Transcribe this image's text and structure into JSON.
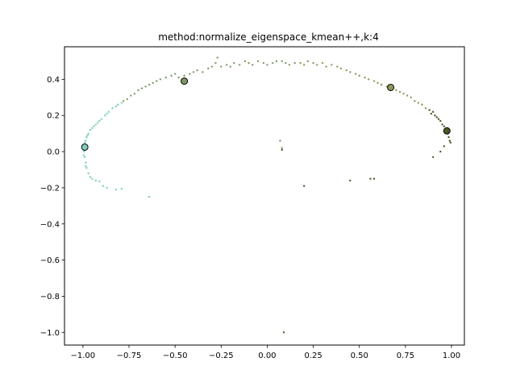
{
  "chart_data": {
    "type": "scatter",
    "title": "method:normalize_eigenspace_kmean++,k:4",
    "xlim": [
      -1.1,
      1.07
    ],
    "ylim": [
      -1.07,
      0.58
    ],
    "xticks": [
      -1.0,
      -0.75,
      -0.5,
      -0.25,
      0.0,
      0.25,
      0.5,
      0.75,
      1.0
    ],
    "xtick_labels": [
      "−1.00",
      "−0.75",
      "−0.50",
      "−0.25",
      "0.00",
      "0.25",
      "0.50",
      "0.75",
      "1.00"
    ],
    "yticks": [
      0.4,
      0.2,
      0.0,
      -0.2,
      -0.4,
      -0.6,
      -0.8,
      -1.0
    ],
    "ytick_labels": [
      "0.4",
      "0.2",
      "0.0",
      "−0.2",
      "−0.4",
      "−0.6",
      "−0.8",
      "−1.0"
    ],
    "grid": false,
    "series": [
      {
        "color": "#7ecfc0",
        "points": [
          [
            -0.99,
            0.01
          ],
          [
            -0.995,
            0.0
          ],
          [
            -0.99,
            -0.03
          ],
          [
            -0.985,
            -0.06
          ],
          [
            -0.98,
            -0.09
          ],
          [
            -0.97,
            -0.12
          ],
          [
            -0.96,
            -0.14
          ],
          [
            -0.95,
            -0.15
          ],
          [
            -0.93,
            -0.16
          ],
          [
            -0.91,
            -0.165
          ],
          [
            -0.99,
            0.05
          ],
          [
            -0.98,
            0.08
          ],
          [
            -0.97,
            0.1
          ],
          [
            -0.96,
            0.12
          ],
          [
            -0.94,
            0.14
          ],
          [
            -0.92,
            0.16
          ],
          [
            -0.9,
            0.18
          ],
          [
            -0.88,
            0.2
          ],
          [
            -0.86,
            0.22
          ],
          [
            -0.84,
            0.24
          ],
          [
            -0.82,
            0.25
          ],
          [
            -0.81,
            0.26
          ],
          [
            -0.79,
            0.27
          ],
          [
            -0.95,
            0.13
          ],
          [
            -0.93,
            0.15
          ],
          [
            -0.975,
            0.09
          ],
          [
            -0.985,
            0.06
          ],
          [
            -0.995,
            -0.02
          ],
          [
            -0.985,
            -0.08
          ],
          [
            -0.89,
            -0.19
          ],
          [
            -0.87,
            -0.2
          ],
          [
            -0.82,
            -0.21
          ],
          [
            -0.79,
            -0.205
          ],
          [
            -0.64,
            -0.25
          ],
          [
            -0.91,
            0.17
          ],
          [
            -0.87,
            0.21
          ]
        ],
        "center": [
          -0.99,
          0.025
        ]
      },
      {
        "color": "#7f9869",
        "points": [
          [
            -0.78,
            0.28
          ],
          [
            -0.76,
            0.29
          ],
          [
            -0.74,
            0.31
          ],
          [
            -0.72,
            0.32
          ],
          [
            -0.7,
            0.34
          ],
          [
            -0.68,
            0.35
          ],
          [
            -0.66,
            0.36
          ],
          [
            -0.64,
            0.37
          ],
          [
            -0.62,
            0.38
          ],
          [
            -0.6,
            0.39
          ],
          [
            -0.58,
            0.4
          ],
          [
            -0.55,
            0.41
          ],
          [
            -0.52,
            0.42
          ],
          [
            -0.5,
            0.43
          ],
          [
            -0.48,
            0.41
          ],
          [
            -0.45,
            0.42
          ],
          [
            -0.42,
            0.43
          ],
          [
            -0.4,
            0.44
          ],
          [
            -0.38,
            0.45
          ],
          [
            -0.35,
            0.44
          ],
          [
            -0.32,
            0.46
          ],
          [
            -0.3,
            0.47
          ],
          [
            -0.28,
            0.49
          ],
          [
            -0.27,
            0.52
          ],
          [
            -0.25,
            0.47
          ],
          [
            -0.22,
            0.48
          ],
          [
            -0.2,
            0.47
          ],
          [
            -0.18,
            0.49
          ],
          [
            -0.15,
            0.48
          ],
          [
            -0.12,
            0.5
          ],
          [
            -0.1,
            0.49
          ],
          [
            -0.08,
            0.48
          ],
          [
            -0.05,
            0.5
          ],
          [
            -0.02,
            0.49
          ],
          [
            0.0,
            0.48
          ],
          [
            0.03,
            0.49
          ],
          [
            0.05,
            0.5
          ],
          [
            0.08,
            0.5
          ],
          [
            0.1,
            0.49
          ],
          [
            0.12,
            0.48
          ],
          [
            0.15,
            0.49
          ],
          [
            0.07,
            0.06
          ],
          [
            0.08,
            0.02
          ]
        ],
        "center": [
          -0.45,
          0.39
        ]
      },
      {
        "color": "#8a9a5b",
        "points": [
          [
            0.18,
            0.49
          ],
          [
            0.2,
            0.48
          ],
          [
            0.22,
            0.5
          ],
          [
            0.25,
            0.49
          ],
          [
            0.27,
            0.48
          ],
          [
            0.3,
            0.49
          ],
          [
            0.32,
            0.47
          ],
          [
            0.35,
            0.48
          ],
          [
            0.38,
            0.47
          ],
          [
            0.4,
            0.46
          ],
          [
            0.43,
            0.45
          ],
          [
            0.45,
            0.44
          ],
          [
            0.48,
            0.43
          ],
          [
            0.5,
            0.42
          ],
          [
            0.53,
            0.41
          ],
          [
            0.55,
            0.4
          ],
          [
            0.58,
            0.39
          ],
          [
            0.6,
            0.38
          ],
          [
            0.62,
            0.37
          ],
          [
            0.65,
            0.36
          ],
          [
            0.68,
            0.35
          ],
          [
            0.7,
            0.34
          ],
          [
            0.72,
            0.33
          ],
          [
            0.74,
            0.32
          ],
          [
            0.76,
            0.31
          ],
          [
            0.78,
            0.3
          ],
          [
            0.8,
            0.28
          ],
          [
            0.82,
            0.27
          ],
          [
            0.84,
            0.26
          ],
          [
            0.86,
            0.24
          ]
        ],
        "center": [
          0.67,
          0.355
        ]
      },
      {
        "color": "#4b5a26",
        "points": [
          [
            0.88,
            0.23
          ],
          [
            0.9,
            0.22
          ],
          [
            0.91,
            0.2
          ],
          [
            0.92,
            0.19
          ],
          [
            0.93,
            0.18
          ],
          [
            0.94,
            0.17
          ],
          [
            0.95,
            0.15
          ],
          [
            0.96,
            0.14
          ],
          [
            0.97,
            0.12
          ],
          [
            0.98,
            0.1
          ],
          [
            0.985,
            0.08
          ],
          [
            0.99,
            0.06
          ],
          [
            0.995,
            0.05
          ],
          [
            0.94,
            0.0
          ],
          [
            0.9,
            -0.03
          ],
          [
            0.96,
            0.03
          ],
          [
            0.45,
            -0.16
          ],
          [
            0.56,
            -0.15
          ],
          [
            0.58,
            -0.15
          ],
          [
            0.2,
            -0.19
          ],
          [
            0.08,
            0.01
          ],
          [
            0.09,
            -1.0
          ],
          [
            0.89,
            0.21
          ]
        ],
        "center": [
          0.975,
          0.115
        ]
      }
    ]
  }
}
